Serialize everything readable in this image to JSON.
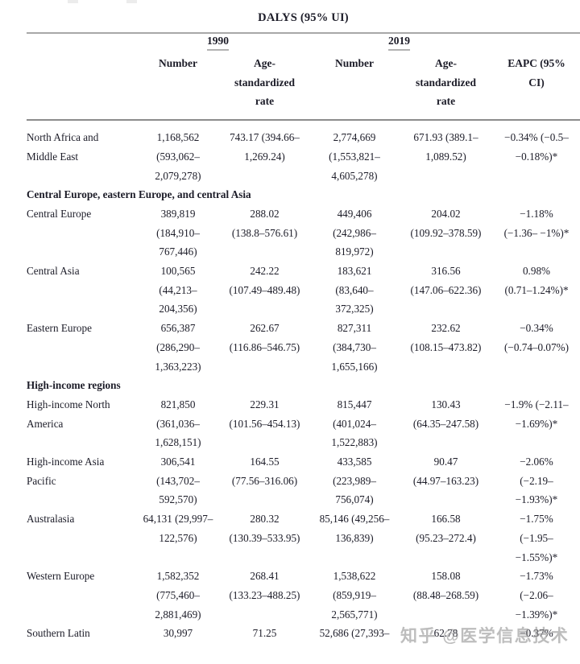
{
  "page": {
    "title": "DALYS (95% UI)"
  },
  "table": {
    "year_groups": [
      "1990",
      "2019"
    ],
    "col_headers": {
      "number_1990": "Number",
      "rate_1990": [
        "Age-",
        "standardized",
        "rate"
      ],
      "number_2019": "Number",
      "rate_2019": [
        "Age-",
        "standardized",
        "rate"
      ],
      "eapc": [
        "EAPC (95%",
        "CI)"
      ]
    },
    "rows": [
      {
        "type": "data",
        "region": [
          "North Africa and",
          "Middle East"
        ],
        "cells": [
          [
            "1,168,562",
            "(593,062–",
            "2,079,278)"
          ],
          [
            "743.17 (394.66–",
            "1,269.24)"
          ],
          [
            "2,774,669",
            "(1,553,821–",
            "4,605,278)"
          ],
          [
            "671.93 (389.1–",
            "1,089.52)"
          ],
          [
            "−0.34% (−0.5–",
            "−0.18%)*"
          ]
        ]
      },
      {
        "type": "section",
        "label": "Central Europe, eastern Europe, and central Asia"
      },
      {
        "type": "data",
        "region": [
          "Central Europe"
        ],
        "cells": [
          [
            "389,819",
            "(184,910–",
            "767,446)"
          ],
          [
            "288.02",
            "(138.8–576.61)"
          ],
          [
            "449,406",
            "(242,986–",
            "819,972)"
          ],
          [
            "204.02",
            "(109.92–378.59)"
          ],
          [
            "−1.18%",
            "(−1.36– −1%)*"
          ]
        ]
      },
      {
        "type": "data",
        "region": [
          "Central Asia"
        ],
        "cells": [
          [
            "100,565",
            "(44,213–",
            "204,356)"
          ],
          [
            "242.22",
            "(107.49–489.48)"
          ],
          [
            "183,621",
            "(83,640–",
            "372,325)"
          ],
          [
            "316.56",
            "(147.06–622.36)"
          ],
          [
            "0.98%",
            "(0.71–1.24%)*"
          ]
        ]
      },
      {
        "type": "data",
        "region": [
          "Eastern Europe"
        ],
        "cells": [
          [
            "656,387",
            "(286,290–",
            "1,363,223)"
          ],
          [
            "262.67",
            "(116.86–546.75)"
          ],
          [
            "827,311",
            "(384,730–",
            "1,655,166)"
          ],
          [
            "232.62",
            "(108.15–473.82)"
          ],
          [
            "−0.34%",
            "(−0.74–0.07%)"
          ]
        ]
      },
      {
        "type": "section",
        "label": "High-income regions"
      },
      {
        "type": "data",
        "region": [
          "High-income North",
          "America"
        ],
        "cells": [
          [
            "821,850",
            "(361,036–",
            "1,628,151)"
          ],
          [
            "229.31",
            "(101.56–454.13)"
          ],
          [
            "815,447",
            "(401,024–",
            "1,522,883)"
          ],
          [
            "130.43",
            "(64.35–247.58)"
          ],
          [
            "−1.9% (−2.11–",
            "−1.69%)*"
          ]
        ]
      },
      {
        "type": "data",
        "region": [
          "High-income Asia",
          "Pacific"
        ],
        "cells": [
          [
            "306,541",
            "(143,702–",
            "592,570)"
          ],
          [
            "164.55",
            "(77.56–316.06)"
          ],
          [
            "433,585",
            "(223,989–",
            "756,074)"
          ],
          [
            "90.47",
            "(44.97–163.23)"
          ],
          [
            "−2.06%",
            "(−2.19–",
            "−1.93%)*"
          ]
        ]
      },
      {
        "type": "data",
        "region": [
          "Australasia"
        ],
        "cells": [
          [
            "64,131 (29,997–",
            "122,576)"
          ],
          [
            "280.32",
            "(130.39–533.95)"
          ],
          [
            "85,146 (49,256–",
            "136,839)"
          ],
          [
            "166.58",
            "(95.23–272.4)"
          ],
          [
            "−1.75%",
            "(−1.95–",
            "−1.55%)*"
          ]
        ]
      },
      {
        "type": "data",
        "region": [
          "Western Europe"
        ],
        "cells": [
          [
            "1,582,352",
            "(775,460–",
            "2,881,469)"
          ],
          [
            "268.41",
            "(133.23–488.25)"
          ],
          [
            "1,538,622",
            "(859,919–",
            "2,565,771)"
          ],
          [
            "158.08",
            "(88.48–268.59)"
          ],
          [
            "−1.73%",
            "(−2.06–",
            "−1.39%)*"
          ]
        ]
      },
      {
        "type": "data",
        "region": [
          "Southern Latin"
        ],
        "cells": [
          [
            "30,997"
          ],
          [
            "71.25"
          ],
          [
            "52,686 (27,393–"
          ],
          [
            "62.78"
          ],
          [
            "−0.37%"
          ]
        ]
      }
    ]
  },
  "watermark": {
    "text": "知乎 @医学信息技术"
  },
  "colors": {
    "text": "#1c1c28",
    "rule_light": "#b2b2b2",
    "rule_heavy": "#8c8c8c",
    "watermark": "#949494"
  }
}
